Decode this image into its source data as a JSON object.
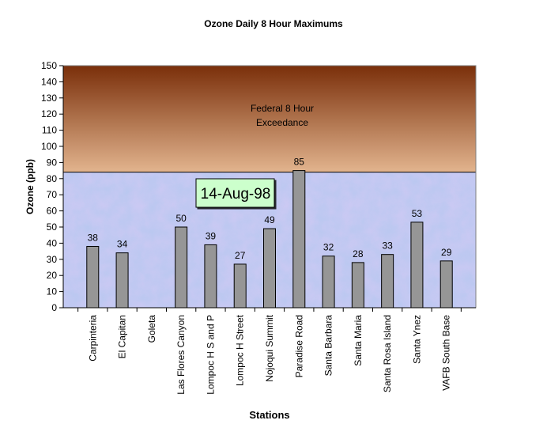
{
  "chart_data": {
    "type": "bar",
    "title": "Ozone Daily 8 Hour Maximums",
    "xlabel": "Stations",
    "ylabel": "Ozone (ppb)",
    "ylim": [
      0,
      150
    ],
    "ytick_step": 10,
    "grid": false,
    "categories": [
      "Carpinteria",
      "El Capitan",
      "Goleta",
      "Las Flores Canyon",
      "Lompoc H S and P",
      "Lompoc H Street",
      "Nojoqui Summit",
      "Paradise Road",
      "Santa Barbara",
      "Santa Maria",
      "Santa Rosa Island",
      "Santa Ynez",
      "VAFB South Base"
    ],
    "values": [
      38,
      34,
      null,
      50,
      39,
      27,
      49,
      85,
      32,
      28,
      33,
      53,
      29
    ],
    "data_labels": [
      "38",
      "34",
      "",
      "50",
      "39",
      "27",
      "49",
      "85",
      "32",
      "28",
      "33",
      "53",
      "29"
    ],
    "bar_color": "#969696",
    "exceedance": {
      "threshold": 84,
      "label_line1": "Federal 8 Hour",
      "label_line2": "Exceedance",
      "color_top": "#7a2f0a",
      "color_bottom": "#e2b48e"
    },
    "below_band_color": "#b8c8f0",
    "date_badge": {
      "text": "14-Aug-98",
      "color": "#ccffcc"
    }
  }
}
